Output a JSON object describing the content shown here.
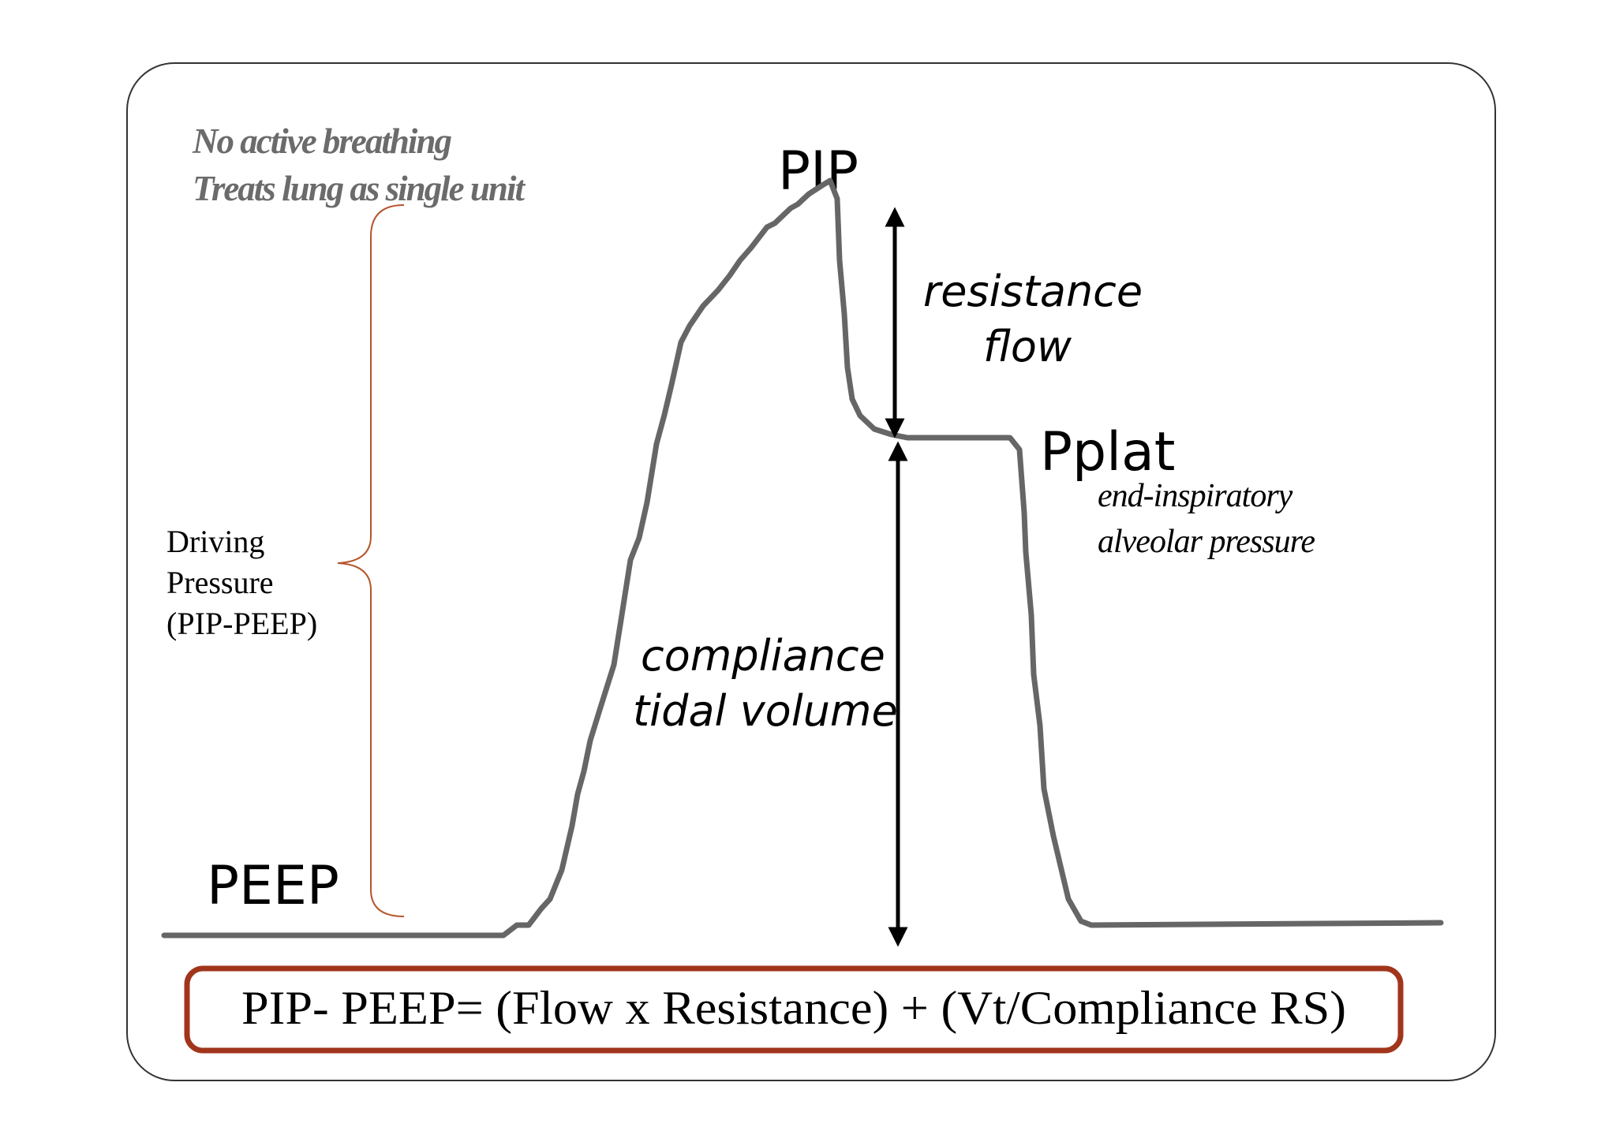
{
  "labels": {
    "pip": "PIP",
    "peep": "PEEP",
    "pplat": "Pplat"
  },
  "notes": {
    "line1": "No active breathing",
    "line2": "Treats lung as single unit"
  },
  "driving_pressure": {
    "line1": "Driving",
    "line2": "Pressure",
    "line3": "(PIP-PEEP)"
  },
  "resistance_label": {
    "line1": "resistance",
    "line2": "flow"
  },
  "compliance_label": {
    "line1": "compliance",
    "line2": "tidal volume"
  },
  "pplat_note": {
    "line1": "end-inspiratory",
    "line2": "alveolar pressure"
  },
  "formula": "PIP- PEEP= (Flow x Resistance) + (Vt/Compliance RS)",
  "colors": {
    "curve": "#666666",
    "note_text": "#6b6b6b",
    "brace": "#b5552b",
    "formula_border": "#a1351c",
    "frame": "#333333",
    "arrow": "#000000"
  }
}
